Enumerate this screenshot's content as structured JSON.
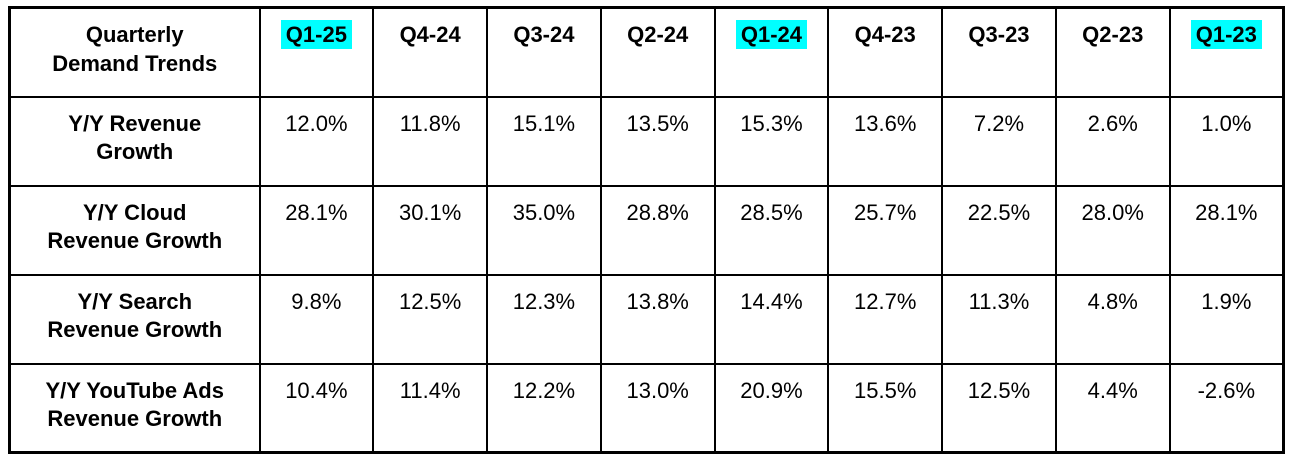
{
  "table": {
    "title": "Quarterly Demand Trends",
    "title_lines": [
      "Quarterly",
      "Demand Trends"
    ],
    "highlight_color": "#00ffff",
    "columns": [
      {
        "label": "Q1-25",
        "highlighted": true
      },
      {
        "label": "Q4-24",
        "highlighted": false
      },
      {
        "label": "Q3-24",
        "highlighted": false
      },
      {
        "label": "Q2-24",
        "highlighted": false
      },
      {
        "label": "Q1-24",
        "highlighted": true
      },
      {
        "label": "Q4-23",
        "highlighted": false
      },
      {
        "label": "Q3-23",
        "highlighted": false
      },
      {
        "label": "Q2-23",
        "highlighted": false
      },
      {
        "label": "Q1-23",
        "highlighted": true
      }
    ],
    "rows": [
      {
        "label": "Y/Y Revenue Growth",
        "label_lines": [
          "Y/Y Revenue",
          "Growth"
        ],
        "values": [
          "12.0%",
          "11.8%",
          "15.1%",
          "13.5%",
          "15.3%",
          "13.6%",
          "7.2%",
          "2.6%",
          "1.0%"
        ]
      },
      {
        "label": "Y/Y Cloud Revenue Growth",
        "label_lines": [
          "Y/Y Cloud",
          "Revenue Growth"
        ],
        "values": [
          "28.1%",
          "30.1%",
          "35.0%",
          "28.8%",
          "28.5%",
          "25.7%",
          "22.5%",
          "28.0%",
          "28.1%"
        ]
      },
      {
        "label": "Y/Y Search Revenue Growth",
        "label_lines": [
          "Y/Y Search",
          "Revenue Growth"
        ],
        "values": [
          "9.8%",
          "12.5%",
          "12.3%",
          "13.8%",
          "14.4%",
          "12.7%",
          "11.3%",
          "4.8%",
          "1.9%"
        ]
      },
      {
        "label": "Y/Y YouTube Ads Revenue Growth",
        "label_lines": [
          "Y/Y YouTube Ads",
          "Revenue Growth"
        ],
        "values": [
          "10.4%",
          "11.4%",
          "12.2%",
          "13.0%",
          "20.9%",
          "15.5%",
          "12.5%",
          "4.4%",
          "-2.6%"
        ]
      }
    ]
  },
  "chart_data": {
    "type": "table",
    "title": "Quarterly Demand Trends",
    "categories": [
      "Q1-25",
      "Q4-24",
      "Q3-24",
      "Q2-24",
      "Q1-24",
      "Q4-23",
      "Q3-23",
      "Q2-23",
      "Q1-23"
    ],
    "series": [
      {
        "name": "Y/Y Revenue Growth",
        "values": [
          12.0,
          11.8,
          15.1,
          13.5,
          15.3,
          13.6,
          7.2,
          2.6,
          1.0
        ]
      },
      {
        "name": "Y/Y Cloud Revenue Growth",
        "values": [
          28.1,
          30.1,
          35.0,
          28.8,
          28.5,
          25.7,
          22.5,
          28.0,
          28.1
        ]
      },
      {
        "name": "Y/Y Search Revenue Growth",
        "values": [
          9.8,
          12.5,
          12.3,
          13.8,
          14.4,
          12.7,
          11.3,
          4.8,
          1.9
        ]
      },
      {
        "name": "Y/Y YouTube Ads Revenue Growth",
        "values": [
          10.4,
          11.4,
          12.2,
          13.0,
          20.9,
          15.5,
          12.5,
          4.4,
          -2.6
        ]
      }
    ],
    "unit": "%",
    "highlighted_categories": [
      "Q1-25",
      "Q1-24",
      "Q1-23"
    ],
    "highlight_color": "#00ffff"
  }
}
